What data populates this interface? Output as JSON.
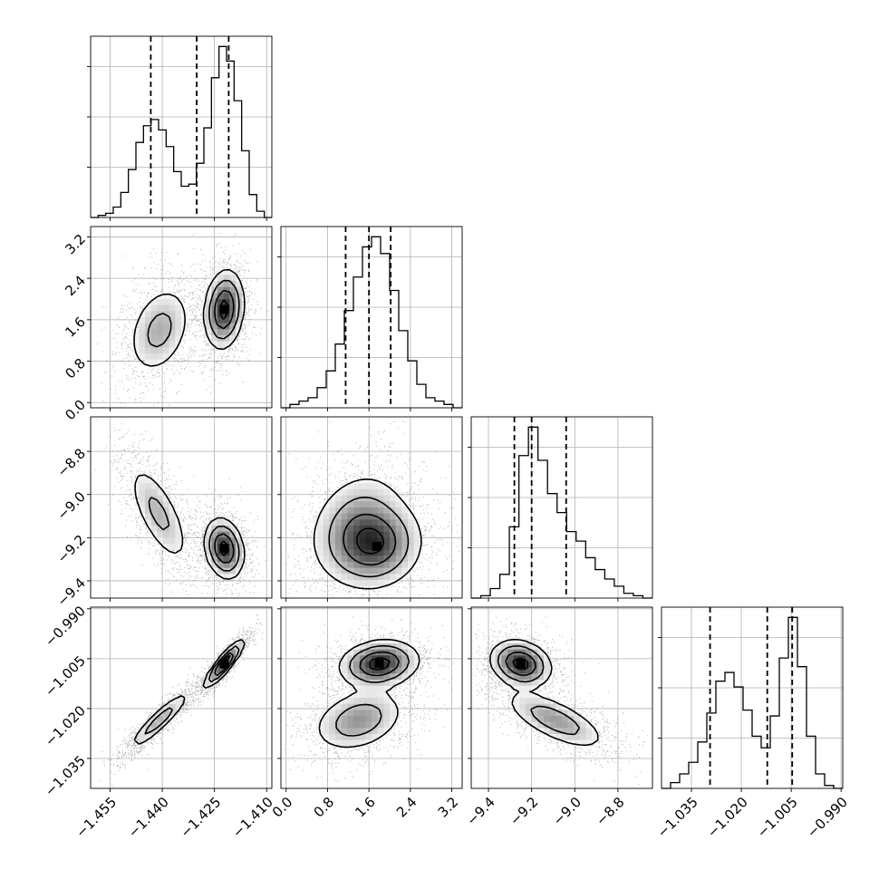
{
  "chart_data": {
    "type": "corner",
    "n_params": 4,
    "params": [
      {
        "ticks": [
          -1.455,
          -1.44,
          -1.425,
          -1.41
        ],
        "tick_labels": [
          "−1.455",
          "−1.440",
          "−1.425",
          "−1.410"
        ],
        "range": [
          -1.4606,
          -1.4085
        ]
      },
      {
        "ticks": [
          0.0,
          0.8,
          1.6,
          2.4,
          3.2
        ],
        "tick_labels": [
          "0.0",
          "0.8",
          "1.6",
          "2.4",
          "3.2"
        ],
        "range": [
          -0.1,
          3.4
        ]
      },
      {
        "ticks": [
          -9.4,
          -9.2,
          -9.0,
          -8.8
        ],
        "tick_labels": [
          "−9.4",
          "−9.2",
          "−9.0",
          "−8.8"
        ],
        "range": [
          -9.48,
          -8.64
        ]
      },
      {
        "ticks": [
          -1.035,
          -1.02,
          -1.005,
          -0.99
        ],
        "tick_labels": [
          "−1.035",
          "−1.020",
          "−1.005",
          "−0.990"
        ],
        "range": [
          -1.044,
          -0.9895
        ]
      }
    ],
    "quantiles": [
      [
        -1.4433,
        -1.4301,
        -1.4209
      ],
      [
        1.15,
        1.6,
        2.02
      ],
      [
        -9.28,
        -9.2,
        -9.04
      ],
      [
        -1.0294,
        -1.0122,
        -1.0047
      ]
    ],
    "histograms": [
      [
        1,
        2,
        5,
        12,
        23,
        36,
        44,
        47,
        42,
        34,
        22,
        15,
        16,
        26,
        43,
        67,
        82,
        75,
        56,
        32,
        11,
        3
      ],
      [
        1,
        2,
        3,
        6,
        11,
        19,
        29,
        39,
        48,
        51,
        46,
        35,
        23,
        14,
        7,
        3,
        2,
        1
      ],
      [
        1,
        4,
        10,
        30,
        60,
        72,
        58,
        44,
        36,
        28,
        24,
        17,
        12,
        8,
        5,
        2,
        1
      ],
      [
        2,
        5,
        9,
        16,
        26,
        37,
        40,
        35,
        27,
        18,
        14,
        25,
        45,
        59,
        42,
        18,
        5,
        1
      ]
    ],
    "grid": true,
    "pairs": [
      {
        "x": 0,
        "y": 1,
        "modes": [
          {
            "cx": -1.4408,
            "cy": 1.4,
            "sx": 0.0047,
            "sy": 0.45,
            "rho": 0.3,
            "w": 0.45
          },
          {
            "cx": -1.4222,
            "cy": 1.8,
            "sx": 0.0028,
            "sy": 0.38,
            "rho": 0.15,
            "w": 0.55
          }
        ]
      },
      {
        "x": 0,
        "y": 2,
        "modes": [
          {
            "cx": -1.441,
            "cy": -9.09,
            "sx": 0.0045,
            "sy": 0.12,
            "rho": -0.7,
            "w": 0.45
          },
          {
            "cx": -1.4222,
            "cy": -9.25,
            "sx": 0.0028,
            "sy": 0.07,
            "rho": -0.2,
            "w": 0.55
          }
        ]
      },
      {
        "x": 0,
        "y": 3,
        "modes": [
          {
            "cx": -1.4408,
            "cy": -1.0235,
            "sx": 0.0045,
            "sy": 0.0045,
            "rho": 0.92,
            "w": 0.45
          },
          {
            "cx": -1.4222,
            "cy": -1.0065,
            "sx": 0.0028,
            "sy": 0.0035,
            "rho": 0.9,
            "w": 0.55
          }
        ]
      },
      {
        "x": 1,
        "y": 2,
        "modes": [
          {
            "cx": 1.35,
            "cy": -9.14,
            "sx": 0.48,
            "sy": 0.13,
            "rho": 0.25,
            "w": 0.45
          },
          {
            "cx": 1.75,
            "cy": -9.24,
            "sx": 0.45,
            "sy": 0.1,
            "rho": 0.1,
            "w": 0.55
          }
        ]
      },
      {
        "x": 1,
        "y": 3,
        "modes": [
          {
            "cx": 1.4,
            "cy": -1.0235,
            "sx": 0.45,
            "sy": 0.0048,
            "rho": 0.3,
            "w": 0.45
          },
          {
            "cx": 1.8,
            "cy": -1.0065,
            "sx": 0.38,
            "sy": 0.0035,
            "rho": 0.15,
            "w": 0.55
          }
        ]
      },
      {
        "x": 2,
        "y": 3,
        "modes": [
          {
            "cx": -9.09,
            "cy": -1.0235,
            "sx": 0.12,
            "sy": 0.0045,
            "rho": -0.7,
            "w": 0.45
          },
          {
            "cx": -9.25,
            "cy": -1.0065,
            "sx": 0.07,
            "sy": 0.0035,
            "rho": -0.2,
            "w": 0.55
          }
        ]
      }
    ]
  }
}
